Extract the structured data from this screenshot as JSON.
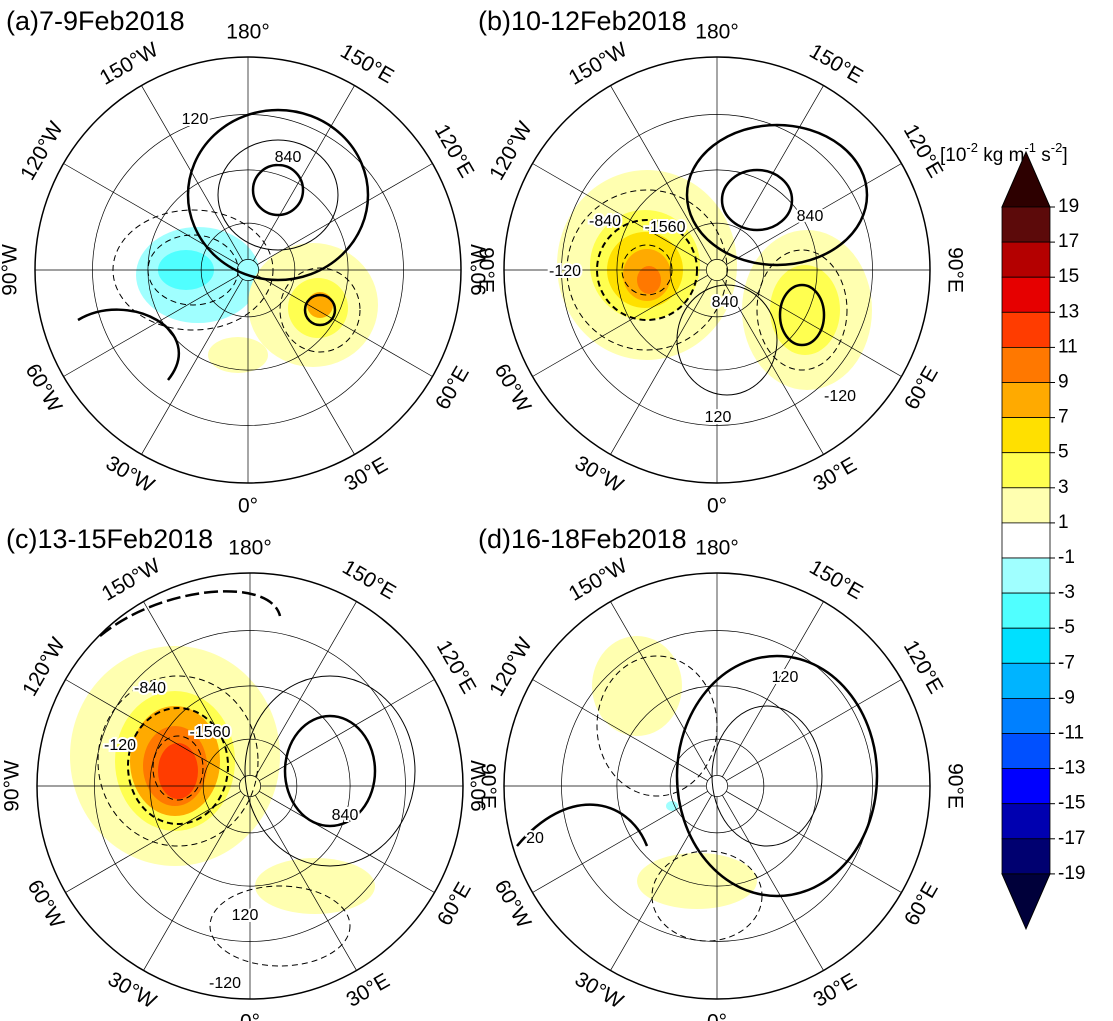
{
  "panels": [
    {
      "title": "(a)7-9Feb2018",
      "contour_labels": [
        120,
        840
      ]
    },
    {
      "title": "(b)10-12Feb2018",
      "contour_labels": [
        -840,
        -1560,
        840,
        -120,
        840,
        120,
        -120
      ]
    },
    {
      "title": "(c)13-15Feb2018",
      "contour_labels": [
        -840,
        -1560,
        -120,
        840,
        120,
        -120
      ]
    },
    {
      "title": "(d)16-18Feb2018",
      "contour_labels": [
        120,
        20
      ]
    }
  ],
  "longitude_labels": [
    {
      "value": 180,
      "label": "180°"
    },
    {
      "value": 150,
      "label": "150°E"
    },
    {
      "value": 120,
      "label": "120°E"
    },
    {
      "value": 90,
      "label": "90°E"
    },
    {
      "value": 60,
      "label": "60°E"
    },
    {
      "value": 30,
      "label": "30°E"
    },
    {
      "value": 0,
      "label": "0°"
    },
    {
      "value": -30,
      "label": "30°W"
    },
    {
      "value": -60,
      "label": "60°W"
    },
    {
      "value": -90,
      "label": "90°W"
    },
    {
      "value": -120,
      "label": "120°W"
    },
    {
      "value": -150,
      "label": "150°W"
    }
  ],
  "colorbar": {
    "unit": [
      {
        "text": "[10"
      },
      {
        "text": "-2",
        "sup": true
      },
      {
        "text": " kg m"
      },
      {
        "text": "-1",
        "sup": true
      },
      {
        "text": " s"
      },
      {
        "text": "-2",
        "sup": true
      },
      {
        "text": "]"
      }
    ],
    "ticks": [
      19,
      17,
      15,
      13,
      11,
      9,
      7,
      5,
      3,
      1,
      -1,
      -3,
      -5,
      -7,
      -9,
      -11,
      -13,
      -15,
      -17,
      -19
    ],
    "colors": [
      "#2d0000",
      "#5c0a0a",
      "#b40000",
      "#e60000",
      "#ff3c00",
      "#ff7800",
      "#ffaa00",
      "#ffe000",
      "#ffff50",
      "#ffffb0",
      "#ffffff",
      "#a0ffff",
      "#50ffff",
      "#00e0ff",
      "#00b4ff",
      "#0080ff",
      "#0050ff",
      "#0000ff",
      "#0000b0",
      "#000070",
      "#00003a"
    ]
  }
}
